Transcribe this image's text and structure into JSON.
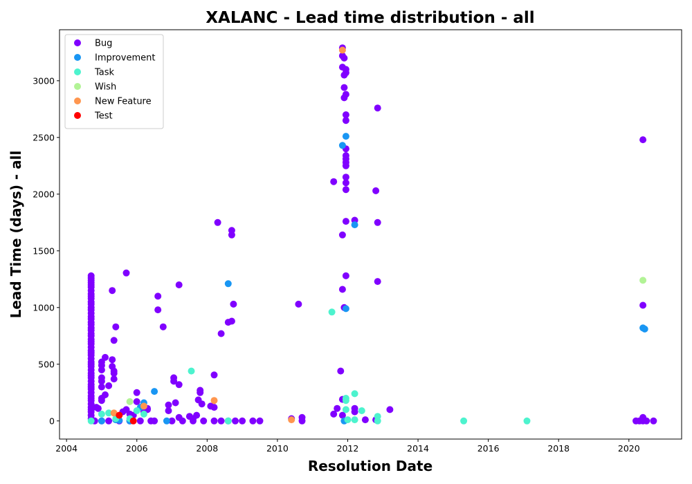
{
  "chart_data": {
    "type": "scatter",
    "title": "XALANC - Lead time distribution - all",
    "xlabel": "Resolution Date",
    "ylabel": "Lead Time (days) - all",
    "xlim": [
      2003.8,
      2021.5
    ],
    "ylim": [
      -160,
      3450
    ],
    "xticks": [
      2004,
      2006,
      2008,
      2010,
      2012,
      2014,
      2016,
      2018,
      2020
    ],
    "yticks": [
      0,
      500,
      1000,
      1500,
      2000,
      2500,
      3000
    ],
    "grid": false,
    "legend_position": "top-left",
    "series": [
      {
        "name": "Bug",
        "color": "#8000ff",
        "points": [
          [
            2004.7,
            1280
          ],
          [
            2004.7,
            1260
          ],
          [
            2004.7,
            1240
          ],
          [
            2004.7,
            1220
          ],
          [
            2004.7,
            1200
          ],
          [
            2004.7,
            1180
          ],
          [
            2004.7,
            1150
          ],
          [
            2004.7,
            1120
          ],
          [
            2004.7,
            1100
          ],
          [
            2004.7,
            1080
          ],
          [
            2004.7,
            1050
          ],
          [
            2004.7,
            1030
          ],
          [
            2004.7,
            1000
          ],
          [
            2004.7,
            980
          ],
          [
            2004.7,
            950
          ],
          [
            2004.7,
            920
          ],
          [
            2004.7,
            900
          ],
          [
            2004.7,
            870
          ],
          [
            2004.7,
            850
          ],
          [
            2004.7,
            820
          ],
          [
            2004.7,
            800
          ],
          [
            2004.7,
            770
          ],
          [
            2004.7,
            750
          ],
          [
            2004.7,
            720
          ],
          [
            2004.7,
            700
          ],
          [
            2004.7,
            680
          ],
          [
            2004.7,
            650
          ],
          [
            2004.7,
            620
          ],
          [
            2004.7,
            600
          ],
          [
            2004.7,
            580
          ],
          [
            2004.7,
            550
          ],
          [
            2004.7,
            520
          ],
          [
            2004.7,
            500
          ],
          [
            2004.7,
            480
          ],
          [
            2004.7,
            450
          ],
          [
            2004.7,
            420
          ],
          [
            2004.7,
            400
          ],
          [
            2004.7,
            380
          ],
          [
            2004.7,
            350
          ],
          [
            2004.7,
            320
          ],
          [
            2004.7,
            300
          ],
          [
            2004.7,
            280
          ],
          [
            2004.7,
            250
          ],
          [
            2004.7,
            220
          ],
          [
            2004.7,
            200
          ],
          [
            2004.7,
            180
          ],
          [
            2004.7,
            150
          ],
          [
            2004.7,
            120
          ],
          [
            2004.7,
            100
          ],
          [
            2004.7,
            80
          ],
          [
            2004.7,
            50
          ],
          [
            2004.7,
            20
          ],
          [
            2004.85,
            120
          ],
          [
            2004.9,
            110
          ],
          [
            2005.0,
            520
          ],
          [
            2005.0,
            490
          ],
          [
            2005.0,
            450
          ],
          [
            2005.0,
            380
          ],
          [
            2005.0,
            350
          ],
          [
            2005.0,
            300
          ],
          [
            2005.0,
            200
          ],
          [
            2005.0,
            180
          ],
          [
            2005.1,
            560
          ],
          [
            2005.1,
            230
          ],
          [
            2005.2,
            310
          ],
          [
            2005.3,
            540
          ],
          [
            2005.3,
            480
          ],
          [
            2005.35,
            440
          ],
          [
            2005.35,
            420
          ],
          [
            2005.35,
            370
          ],
          [
            2005.3,
            1150
          ],
          [
            2005.35,
            710
          ],
          [
            2005.4,
            830
          ],
          [
            2005.7,
            1305
          ],
          [
            2005.7,
            100
          ],
          [
            2005.6,
            80
          ],
          [
            2005.8,
            60
          ],
          [
            2005.9,
            50
          ],
          [
            2006.0,
            250
          ],
          [
            2006.0,
            170
          ],
          [
            2006.3,
            110
          ],
          [
            2006.3,
            100
          ],
          [
            2006.2,
            80
          ],
          [
            2006.5,
            0
          ],
          [
            2006.6,
            1100
          ],
          [
            2006.6,
            980
          ],
          [
            2006.75,
            830
          ],
          [
            2006.9,
            140
          ],
          [
            2006.9,
            90
          ],
          [
            2007.05,
            380
          ],
          [
            2007.05,
            350
          ],
          [
            2007.1,
            160
          ],
          [
            2007.2,
            1200
          ],
          [
            2007.2,
            320
          ],
          [
            2007.2,
            30
          ],
          [
            2007.5,
            40
          ],
          [
            2007.6,
            20
          ],
          [
            2007.7,
            50
          ],
          [
            2007.8,
            270
          ],
          [
            2007.8,
            250
          ],
          [
            2007.85,
            150
          ],
          [
            2007.75,
            185
          ],
          [
            2008.1,
            130
          ],
          [
            2008.2,
            405
          ],
          [
            2008.2,
            120
          ],
          [
            2008.3,
            1750
          ],
          [
            2008.4,
            770
          ],
          [
            2008.6,
            870
          ],
          [
            2008.7,
            1680
          ],
          [
            2008.7,
            1640
          ],
          [
            2008.7,
            880
          ],
          [
            2008.75,
            1030
          ],
          [
            2004.8,
            0
          ],
          [
            2005.0,
            0
          ],
          [
            2005.2,
            0
          ],
          [
            2005.5,
            0
          ],
          [
            2005.8,
            0
          ],
          [
            2006.1,
            0
          ],
          [
            2006.4,
            0
          ],
          [
            2007.0,
            0
          ],
          [
            2007.3,
            0
          ],
          [
            2007.6,
            0
          ],
          [
            2007.9,
            0
          ],
          [
            2008.2,
            0
          ],
          [
            2008.4,
            0
          ],
          [
            2008.6,
            0
          ],
          [
            2008.8,
            0
          ],
          [
            2009.0,
            0
          ],
          [
            2009.3,
            0
          ],
          [
            2009.5,
            0
          ],
          [
            2010.4,
            20
          ],
          [
            2010.6,
            1030
          ],
          [
            2010.7,
            30
          ],
          [
            2010.7,
            0
          ],
          [
            2011.6,
            2110
          ],
          [
            2011.6,
            60
          ],
          [
            2011.7,
            110
          ],
          [
            2011.8,
            440
          ],
          [
            2011.85,
            3290
          ],
          [
            2011.85,
            3220
          ],
          [
            2011.85,
            3120
          ],
          [
            2011.9,
            3200
          ],
          [
            2011.95,
            3100
          ],
          [
            2011.95,
            3070
          ],
          [
            2011.9,
            3050
          ],
          [
            2011.9,
            2940
          ],
          [
            2011.95,
            2880
          ],
          [
            2011.9,
            2850
          ],
          [
            2011.95,
            2700
          ],
          [
            2011.95,
            2650
          ],
          [
            2011.95,
            2400
          ],
          [
            2011.95,
            2340
          ],
          [
            2011.95,
            2310
          ],
          [
            2011.95,
            2280
          ],
          [
            2011.95,
            2250
          ],
          [
            2011.95,
            2150
          ],
          [
            2011.95,
            2100
          ],
          [
            2011.95,
            2040
          ],
          [
            2011.95,
            1760
          ],
          [
            2011.85,
            1640
          ],
          [
            2011.95,
            1280
          ],
          [
            2011.85,
            1160
          ],
          [
            2011.9,
            1000
          ],
          [
            2011.85,
            190
          ],
          [
            2011.85,
            50
          ],
          [
            2012.2,
            1770
          ],
          [
            2012.2,
            110
          ],
          [
            2012.2,
            80
          ],
          [
            2012.5,
            10
          ],
          [
            2012.8,
            2030
          ],
          [
            2012.85,
            2760
          ],
          [
            2012.85,
            1750
          ],
          [
            2012.85,
            1230
          ],
          [
            2012.8,
            10
          ],
          [
            2013.2,
            100
          ],
          [
            2020.4,
            2480
          ],
          [
            2020.4,
            1020
          ],
          [
            2020.4,
            30
          ],
          [
            2020.2,
            0
          ],
          [
            2020.3,
            0
          ],
          [
            2020.4,
            0
          ],
          [
            2020.5,
            0
          ],
          [
            2020.7,
            0
          ]
        ]
      },
      {
        "name": "Improvement",
        "color": "#1996f3",
        "points": [
          [
            2005.4,
            10
          ],
          [
            2005.5,
            5
          ],
          [
            2006.1,
            120
          ],
          [
            2006.2,
            160
          ],
          [
            2006.5,
            260
          ],
          [
            2006.85,
            0
          ],
          [
            2008.6,
            1210
          ],
          [
            2011.85,
            2430
          ],
          [
            2011.95,
            2510
          ],
          [
            2011.95,
            990
          ],
          [
            2011.9,
            0
          ],
          [
            2012.2,
            1730
          ],
          [
            2020.4,
            820
          ],
          [
            2020.45,
            810
          ],
          [
            2005.0,
            0
          ],
          [
            2005.8,
            0
          ]
        ]
      },
      {
        "name": "Task",
        "color": "#4df3ce",
        "points": [
          [
            2004.7,
            0
          ],
          [
            2005.0,
            60
          ],
          [
            2005.2,
            70
          ],
          [
            2005.4,
            20
          ],
          [
            2005.8,
            20
          ],
          [
            2006.0,
            90
          ],
          [
            2006.2,
            60
          ],
          [
            2007.55,
            440
          ],
          [
            2008.6,
            0
          ],
          [
            2011.55,
            960
          ],
          [
            2011.95,
            200
          ],
          [
            2011.95,
            180
          ],
          [
            2011.95,
            100
          ],
          [
            2012.0,
            10
          ],
          [
            2012.2,
            240
          ],
          [
            2012.2,
            10
          ],
          [
            2012.4,
            90
          ],
          [
            2012.85,
            40
          ],
          [
            2012.85,
            0
          ],
          [
            2015.3,
            0
          ],
          [
            2017.1,
            0
          ]
        ]
      },
      {
        "name": "Wish",
        "color": "#b2f396",
        "points": [
          [
            2005.8,
            170
          ],
          [
            2020.4,
            1240
          ]
        ]
      },
      {
        "name": "New Feature",
        "color": "#ff964f",
        "points": [
          [
            2005.35,
            70
          ],
          [
            2006.2,
            130
          ],
          [
            2008.2,
            180
          ],
          [
            2010.4,
            10
          ],
          [
            2011.85,
            3270
          ]
        ]
      },
      {
        "name": "Test",
        "color": "#ff0000",
        "points": [
          [
            2005.5,
            50
          ],
          [
            2005.9,
            0
          ]
        ]
      }
    ]
  }
}
